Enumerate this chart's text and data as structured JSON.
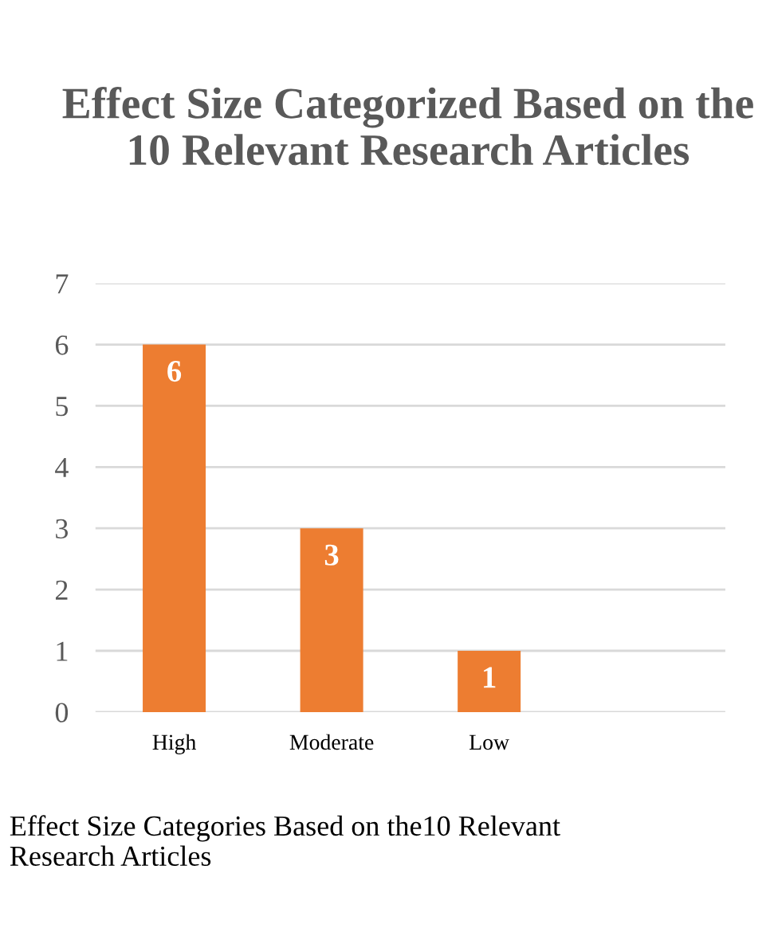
{
  "chart_data": {
    "type": "bar",
    "title": "Effect Size Categorized Based on the 10 Relevant Research Articles",
    "categories": [
      "High",
      "Moderate",
      "Low",
      null
    ],
    "values": [
      6,
      3,
      1,
      null
    ],
    "color": "#ed7d31",
    "ylim": [
      0,
      7
    ],
    "yticks": [
      0,
      1,
      2,
      3,
      4,
      5,
      6,
      7
    ],
    "grid": "y",
    "data_labels": true,
    "annotations": [
      "Effect Size Categories Based on the10 Relevant Research Articles"
    ]
  }
}
